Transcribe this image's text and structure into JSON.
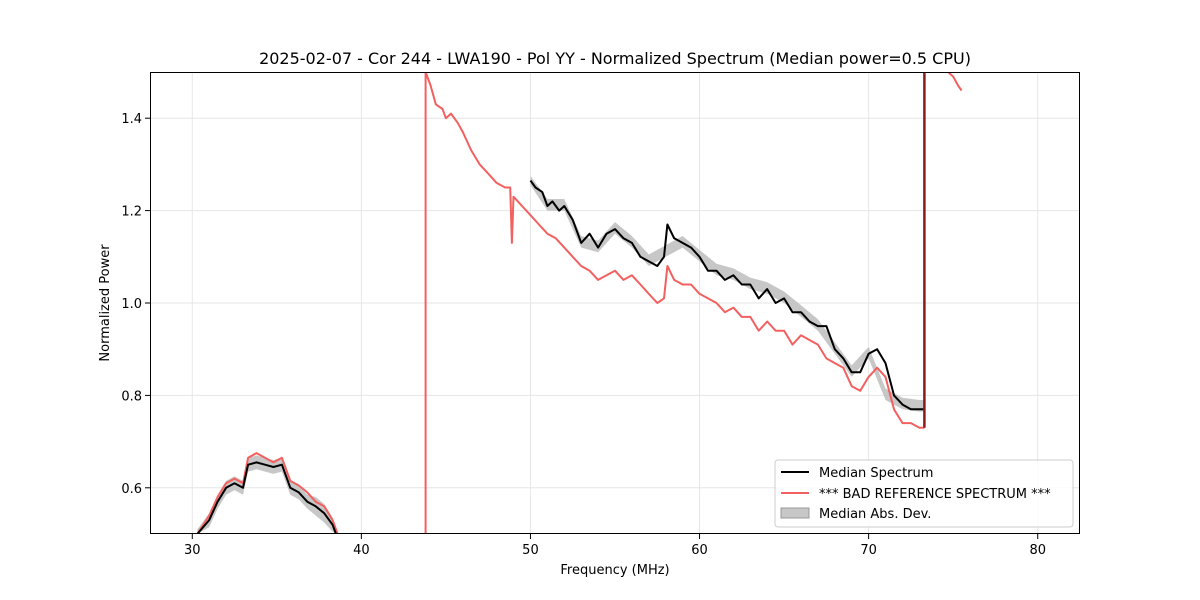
{
  "chart_data": {
    "type": "line",
    "title": "2025-02-07 - Cor 244 - LWA190 - Pol YY - Normalized Spectrum (Median power=0.5 CPU)",
    "xlabel": "Frequency (MHz)",
    "ylabel": "Normalized Power",
    "xlim": [
      27.5,
      82.5
    ],
    "ylim": [
      0.5,
      1.5
    ],
    "xticks": [
      30,
      40,
      50,
      60,
      70,
      80
    ],
    "xtick_labels": [
      "30",
      "40",
      "50",
      "60",
      "70",
      "80"
    ],
    "yticks": [
      0.6,
      0.8,
      1.0,
      1.2,
      1.4
    ],
    "ytick_labels": [
      "0.6",
      "0.8",
      "1.0",
      "1.2",
      "1.4"
    ],
    "grid": true,
    "legend_position": "lower-right",
    "legend": [
      "Median Spectrum",
      "*** BAD REFERENCE SPECTRUM ***",
      "Median Abs. Dev."
    ],
    "colors": {
      "median": "#000000",
      "reference": "#f26060",
      "mad_fill": "#bdbdbd",
      "spike": "#8b1a1a",
      "grid": "#e6e6e6"
    },
    "series": [
      {
        "name": "Median Spectrum",
        "segments": [
          {
            "x": [
              30.3,
              31.0,
              31.5,
              32.0,
              32.5,
              33.0,
              33.3,
              33.8,
              34.3,
              34.8,
              35.3,
              35.8,
              36.3,
              36.8,
              37.3,
              37.8,
              38.3,
              38.5
            ],
            "y": [
              0.5,
              0.53,
              0.57,
              0.6,
              0.61,
              0.6,
              0.65,
              0.655,
              0.65,
              0.645,
              0.65,
              0.6,
              0.59,
              0.57,
              0.56,
              0.545,
              0.52,
              0.5
            ]
          },
          {
            "x": [
              50.0,
              50.3,
              50.7,
              51.0,
              51.3,
              51.7,
              52.0,
              52.5,
              53.0,
              53.5,
              54.0,
              54.5,
              55.0,
              55.5,
              56.0,
              56.5,
              57.0,
              57.5,
              57.9,
              58.1,
              58.5,
              59.0,
              59.5,
              60.0,
              60.5,
              61.0,
              61.5,
              62.0,
              62.5,
              63.0,
              63.5,
              64.0,
              64.5,
              65.0,
              65.5,
              66.0,
              66.5,
              67.0,
              67.5,
              68.0,
              68.5,
              69.0,
              69.5,
              70.0,
              70.5,
              71.0,
              71.5,
              72.0,
              72.5,
              73.0,
              73.3
            ],
            "y": [
              1.265,
              1.25,
              1.24,
              1.21,
              1.22,
              1.2,
              1.21,
              1.18,
              1.13,
              1.15,
              1.12,
              1.15,
              1.16,
              1.14,
              1.13,
              1.1,
              1.09,
              1.08,
              1.1,
              1.17,
              1.14,
              1.13,
              1.12,
              1.1,
              1.07,
              1.07,
              1.05,
              1.06,
              1.04,
              1.04,
              1.01,
              1.03,
              1.0,
              1.01,
              0.98,
              0.98,
              0.96,
              0.95,
              0.95,
              0.9,
              0.88,
              0.85,
              0.85,
              0.89,
              0.9,
              0.87,
              0.8,
              0.78,
              0.77,
              0.77,
              0.77
            ]
          }
        ]
      },
      {
        "name": "*** BAD REFERENCE SPECTRUM ***",
        "segments": [
          {
            "x": [
              30.3,
              31.0,
              31.5,
              32.0,
              32.5,
              33.0,
              33.3,
              33.8,
              34.3,
              34.8,
              35.3,
              35.8,
              36.3,
              36.8,
              37.3,
              37.8,
              38.3,
              38.6
            ],
            "y": [
              0.5,
              0.54,
              0.58,
              0.61,
              0.62,
              0.61,
              0.665,
              0.675,
              0.665,
              0.655,
              0.665,
              0.615,
              0.605,
              0.59,
              0.57,
              0.56,
              0.53,
              0.5
            ]
          },
          {
            "x": [
              43.8,
              43.8
            ],
            "y": [
              0.5,
              1.5
            ]
          },
          {
            "x": [
              43.8,
              44.1,
              44.4,
              44.8,
              45.0,
              45.3,
              45.7,
              46.0,
              46.5,
              47.0,
              47.5,
              48.0,
              48.5,
              48.8,
              48.9,
              48.95,
              49.0,
              49.5,
              50.0,
              50.5,
              51.0,
              51.5,
              52.0,
              52.5,
              53.0,
              53.5,
              54.0,
              54.5,
              55.0,
              55.5,
              56.0,
              56.5,
              57.0,
              57.5,
              57.9,
              58.1,
              58.5,
              59.0,
              59.5,
              60.0,
              60.5,
              61.0,
              61.5,
              62.0,
              62.5,
              63.0,
              63.5,
              64.0,
              64.5,
              65.0,
              65.5,
              66.0,
              66.5,
              67.0,
              67.5,
              68.0,
              68.5,
              69.0,
              69.5,
              70.0,
              70.5,
              71.0,
              71.5,
              72.0,
              72.5,
              73.0,
              73.3
            ],
            "y": [
              1.5,
              1.47,
              1.43,
              1.42,
              1.4,
              1.41,
              1.39,
              1.37,
              1.33,
              1.3,
              1.28,
              1.26,
              1.25,
              1.25,
              1.13,
              1.18,
              1.23,
              1.21,
              1.19,
              1.17,
              1.15,
              1.14,
              1.12,
              1.1,
              1.08,
              1.07,
              1.05,
              1.06,
              1.07,
              1.05,
              1.06,
              1.04,
              1.02,
              1.0,
              1.01,
              1.08,
              1.05,
              1.04,
              1.04,
              1.02,
              1.01,
              1.0,
              0.98,
              0.99,
              0.97,
              0.97,
              0.94,
              0.96,
              0.94,
              0.94,
              0.91,
              0.93,
              0.92,
              0.91,
              0.88,
              0.87,
              0.86,
              0.82,
              0.81,
              0.84,
              0.86,
              0.84,
              0.77,
              0.74,
              0.74,
              0.73,
              0.73
            ]
          },
          {
            "x": [
              74.7,
              75.0,
              75.3,
              75.5
            ],
            "y": [
              1.5,
              1.49,
              1.47,
              1.46
            ]
          }
        ]
      },
      {
        "name": "Median Abs. Dev.",
        "segments": [
          {
            "x": [
              30.3,
              31.0,
              31.5,
              32.0,
              32.5,
              33.0,
              33.3,
              33.8,
              34.3,
              34.8,
              35.3,
              35.8,
              36.3,
              36.8,
              37.3,
              37.8,
              38.3,
              38.5
            ],
            "lower": [
              0.5,
              0.515,
              0.555,
              0.585,
              0.595,
              0.585,
              0.635,
              0.64,
              0.635,
              0.63,
              0.635,
              0.585,
              0.575,
              0.555,
              0.54,
              0.525,
              0.505,
              0.5
            ],
            "upper": [
              0.51,
              0.545,
              0.585,
              0.615,
              0.625,
              0.615,
              0.665,
              0.67,
              0.665,
              0.66,
              0.665,
              0.615,
              0.605,
              0.585,
              0.58,
              0.565,
              0.535,
              0.51
            ]
          },
          {
            "x": [
              50.0,
              51.0,
              52.0,
              53.0,
              54.0,
              55.0,
              56.0,
              57.0,
              58.0,
              59.0,
              60.0,
              61.0,
              62.0,
              63.0,
              64.0,
              65.0,
              66.0,
              67.0,
              68.0,
              69.0,
              70.0,
              71.0,
              72.0,
              73.0,
              73.3
            ],
            "lower": [
              1.255,
              1.2,
              1.2,
              1.12,
              1.11,
              1.15,
              1.12,
              1.08,
              1.1,
              1.12,
              1.09,
              1.06,
              1.05,
              1.03,
              1.02,
              1.0,
              0.97,
              0.94,
              0.89,
              0.84,
              0.88,
              0.79,
              0.77,
              0.765,
              0.765
            ],
            "upper": [
              1.275,
              1.225,
              1.225,
              1.145,
              1.135,
              1.175,
              1.145,
              1.105,
              1.125,
              1.145,
              1.115,
              1.085,
              1.075,
              1.055,
              1.045,
              1.025,
              0.995,
              0.965,
              0.915,
              0.865,
              0.905,
              0.815,
              0.795,
              0.79,
              0.79
            ]
          }
        ]
      },
      {
        "name": "Spike at 73.3 MHz",
        "segments": [
          {
            "x": [
              73.3,
              73.3
            ],
            "y": [
              0.73,
              1.5
            ]
          }
        ]
      }
    ]
  }
}
